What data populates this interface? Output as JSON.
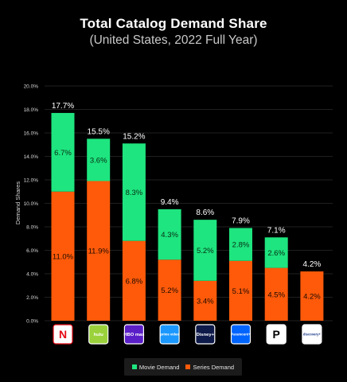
{
  "header": {
    "title": "Total Catalog Demand Share",
    "subtitle": "(United States, 2022 Full Year)"
  },
  "colors": {
    "movie": "#1ee57f",
    "series": "#ff5a0a",
    "grid": "#2a2a2a",
    "background": "#000000"
  },
  "chart_data": {
    "type": "bar",
    "stacked": true,
    "title": "Total Catalog Demand Share",
    "subtitle": "(United States, 2022 Full Year)",
    "xlabel": "",
    "ylabel": "Demand Shares",
    "ylim": [
      0,
      20
    ],
    "yticks": [
      "0.0%",
      "2.0%",
      "4.0%",
      "6.0%",
      "8.0%",
      "10.0%",
      "12.0%",
      "14.0%",
      "16.0%",
      "18.0%",
      "20.0%"
    ],
    "grid": true,
    "legend_position": "bottom",
    "categories": [
      "Netflix",
      "Hulu",
      "HBO Max",
      "Prime Video",
      "Disney+",
      "Paramount+",
      "Peacock",
      "Discovery+"
    ],
    "series": [
      {
        "name": "Series Demand",
        "values": [
          11.0,
          11.9,
          6.8,
          5.2,
          3.4,
          5.1,
          4.5,
          4.2
        ],
        "labels": [
          "11.0%",
          "11.9%",
          "6.8%",
          "5.2%",
          "3.4%",
          "5.1%",
          "4.5%",
          "4.2%"
        ]
      },
      {
        "name": "Movie Demand",
        "values": [
          6.7,
          3.6,
          8.3,
          4.3,
          5.2,
          2.8,
          2.6,
          0
        ],
        "labels": [
          "6.7%",
          "3.6%",
          "8.3%",
          "4.3%",
          "5.2%",
          "2.8%",
          "2.6%",
          ""
        ]
      }
    ],
    "totals": [
      17.7,
      15.5,
      15.2,
      9.4,
      8.6,
      7.9,
      7.1,
      4.2
    ],
    "total_labels": [
      "17.7%",
      "15.5%",
      "15.2%",
      "9.4%",
      "8.6%",
      "7.9%",
      "7.1%",
      "4.2%"
    ]
  },
  "logos": [
    {
      "icon": "netflix-logo-icon",
      "text": "N",
      "bg": "#ffffff",
      "fg": "#e50914",
      "border": "#e50914"
    },
    {
      "icon": "hulu-logo-icon",
      "text": "hulu",
      "bg": "#9bd23c",
      "fg": "#ffffff",
      "border": "#ffffff"
    },
    {
      "icon": "hbo-max-logo-icon",
      "text": "HBO max",
      "bg": "#5b1fc8",
      "fg": "#ffffff",
      "border": "#ffffff"
    },
    {
      "icon": "prime-video-logo-icon",
      "text": "prime video",
      "bg": "#1a98ff",
      "fg": "#ffffff",
      "border": "#ffffff"
    },
    {
      "icon": "disney-plus-logo-icon",
      "text": "Disney+",
      "bg": "#0e1a4a",
      "fg": "#ffffff",
      "border": "#ffffff"
    },
    {
      "icon": "paramount-plus-logo-icon",
      "text": "Paramount+",
      "bg": "#0064ff",
      "fg": "#ffffff",
      "border": "#ffffff"
    },
    {
      "icon": "peacock-logo-icon",
      "text": "P",
      "bg": "#ffffff",
      "fg": "#000000",
      "border": "#ffffff"
    },
    {
      "icon": "discovery-plus-logo-icon",
      "text": "discovery+",
      "bg": "#ffffff",
      "fg": "#1a3a8a",
      "border": "#ffffff"
    }
  ],
  "legend": {
    "movie_label": "Movie Demand",
    "series_label": "Series Demand"
  }
}
